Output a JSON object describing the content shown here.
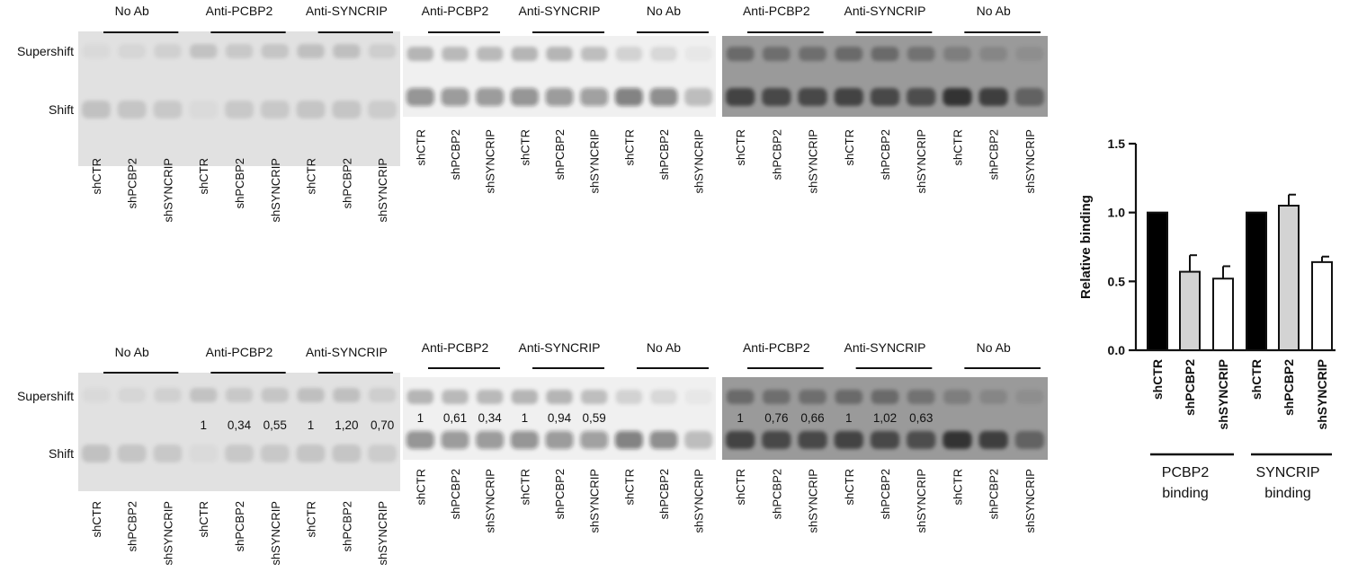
{
  "row_labels": {
    "supershift": "Supershift",
    "shift": "Shift"
  },
  "rows": [
    {
      "panels": [
        {
          "groups": [
            "No Ab",
            "Anti-PCBP2",
            "Anti-SYNCRIP"
          ],
          "lanes": [
            "shCTR",
            "shPCBP2",
            "shSYNCRIP",
            "shCTR",
            "shPCBP2",
            "shSYNCRIP",
            "shCTR",
            "shPCBP2",
            "shSYNCRIP"
          ],
          "quant": []
        },
        {
          "groups": [
            "Anti-PCBP2",
            "Anti-SYNCRIP",
            "No Ab"
          ],
          "lanes": [
            "shCTR",
            "shPCBP2",
            "shSYNCRIP",
            "shCTR",
            "shPCBP2",
            "shSYNCRIP",
            "shCTR",
            "shPCBP2",
            "shSYNCRIP"
          ],
          "quant": []
        },
        {
          "groups": [
            "Anti-PCBP2",
            "Anti-SYNCRIP",
            "No Ab"
          ],
          "lanes": [
            "shCTR",
            "shPCBP2",
            "shSYNCRIP",
            "shCTR",
            "shPCBP2",
            "shSYNCRIP",
            "shCTR",
            "shPCBP2",
            "shSYNCRIP"
          ],
          "quant": []
        }
      ]
    },
    {
      "panels": [
        {
          "groups": [
            "No Ab",
            "Anti-PCBP2",
            "Anti-SYNCRIP"
          ],
          "lanes": [
            "shCTR",
            "shPCBP2",
            "shSYNCRIP",
            "shCTR",
            "shPCBP2",
            "shSYNCRIP",
            "shCTR",
            "shPCBP2",
            "shSYNCRIP"
          ],
          "quant": [
            "",
            "",
            "",
            "1",
            "0,34",
            "0,55",
            "1",
            "1,20",
            "0,70"
          ]
        },
        {
          "groups": [
            "Anti-PCBP2",
            "Anti-SYNCRIP",
            "No Ab"
          ],
          "lanes": [
            "shCTR",
            "shPCBP2",
            "shSYNCRIP",
            "shCTR",
            "shPCBP2",
            "shSYNCRIP",
            "shCTR",
            "shPCBP2",
            "shSYNCRIP"
          ],
          "quant": [
            "1",
            "0,61",
            "0,34",
            "1",
            "0,94",
            "0,59",
            "",
            "",
            ""
          ]
        },
        {
          "groups": [
            "Anti-PCBP2",
            "Anti-SYNCRIP",
            "No Ab"
          ],
          "lanes": [
            "shCTR",
            "shPCBP2",
            "shSYNCRIP",
            "shCTR",
            "shPCBP2",
            "shSYNCRIP",
            "shCTR",
            "shPCBP2",
            "shSYNCRIP"
          ],
          "quant": [
            "1",
            "0,76",
            "0,66",
            "1",
            "1,02",
            "0,63",
            "",
            "",
            ""
          ]
        }
      ]
    }
  ],
  "chart_data": {
    "type": "bar",
    "ylabel": "Relative binding",
    "ylim": [
      0,
      1.5
    ],
    "yticks": [
      "0.0",
      "0.5",
      "1.0",
      "1.5"
    ],
    "grid": false,
    "categories": [
      "shCTR",
      "shPCBP2",
      "shSYNCRIP",
      "shCTR",
      "shPCBP2",
      "shSYNCRIP"
    ],
    "values": [
      1.0,
      0.57,
      0.52,
      1.0,
      1.05,
      0.64
    ],
    "errors": [
      0,
      0.12,
      0.09,
      0,
      0.08,
      0.04
    ],
    "bar_colors": [
      "#000000",
      "#d3d3d3",
      "#ffffff",
      "#000000",
      "#d3d3d3",
      "#ffffff"
    ],
    "groups": [
      {
        "label_line1": "PCBP2",
        "label_line2": "binding"
      },
      {
        "label_line1": "SYNCRIP",
        "label_line2": "binding"
      }
    ]
  }
}
